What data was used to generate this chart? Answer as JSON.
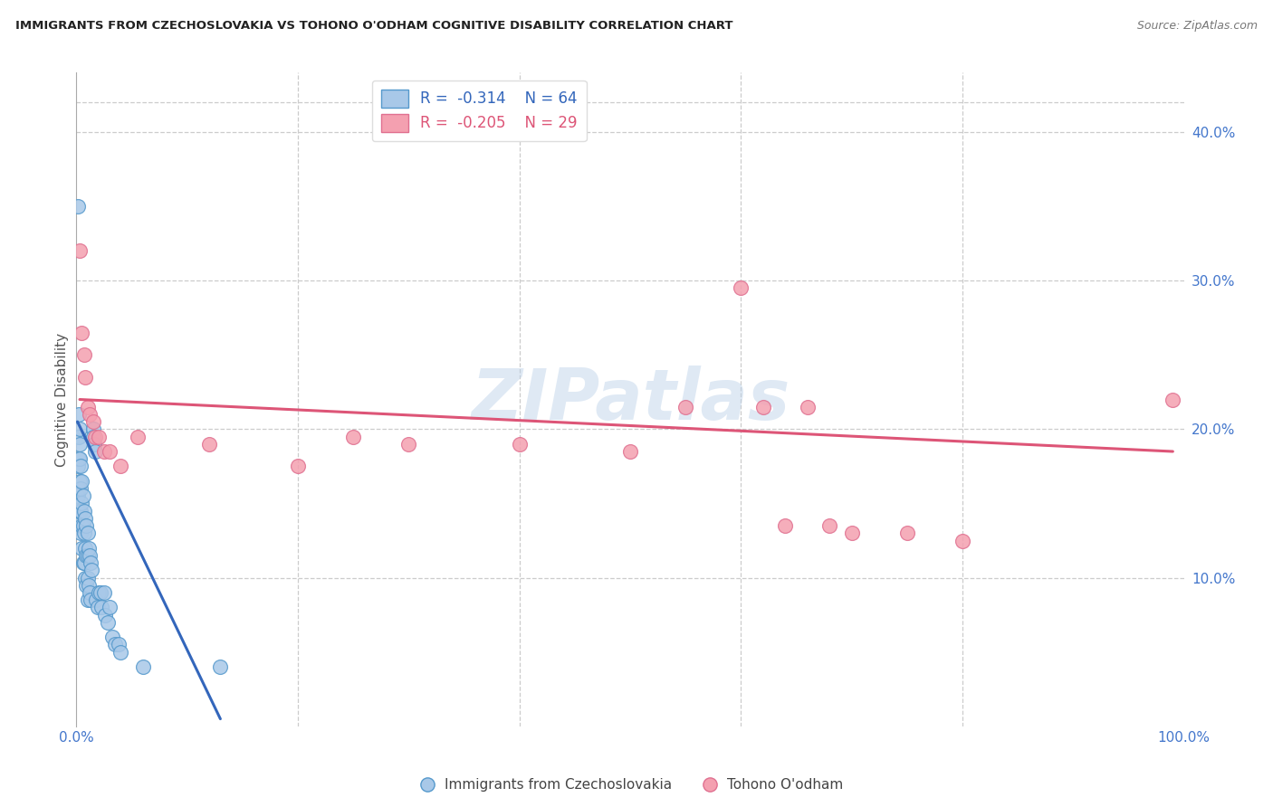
{
  "title": "IMMIGRANTS FROM CZECHOSLOVAKIA VS TOHONO O'ODHAM COGNITIVE DISABILITY CORRELATION CHART",
  "source": "Source: ZipAtlas.com",
  "ylabel": "Cognitive Disability",
  "ytick_labels": [
    "10.0%",
    "20.0%",
    "30.0%",
    "40.0%"
  ],
  "ytick_values": [
    0.1,
    0.2,
    0.3,
    0.4
  ],
  "xlim": [
    0.0,
    1.0
  ],
  "ylim": [
    0.0,
    0.44
  ],
  "blue_R": "-0.314",
  "blue_N": "64",
  "pink_R": "-0.205",
  "pink_N": "29",
  "blue_color": "#a8c8e8",
  "pink_color": "#f4a0b0",
  "blue_edge_color": "#5599cc",
  "pink_edge_color": "#e07090",
  "blue_line_color": "#3366bb",
  "pink_line_color": "#dd5577",
  "watermark": "ZIPatlas",
  "legend_label_blue": "Immigrants from Czechoslovakia",
  "legend_label_pink": "Tohono O'odham",
  "blue_points_x": [
    0.001,
    0.001,
    0.001,
    0.001,
    0.002,
    0.002,
    0.002,
    0.002,
    0.002,
    0.003,
    0.003,
    0.003,
    0.003,
    0.003,
    0.004,
    0.004,
    0.004,
    0.004,
    0.005,
    0.005,
    0.005,
    0.005,
    0.006,
    0.006,
    0.006,
    0.007,
    0.007,
    0.007,
    0.008,
    0.008,
    0.008,
    0.009,
    0.009,
    0.009,
    0.01,
    0.01,
    0.01,
    0.01,
    0.011,
    0.011,
    0.012,
    0.012,
    0.013,
    0.013,
    0.014,
    0.015,
    0.015,
    0.016,
    0.017,
    0.018,
    0.019,
    0.02,
    0.022,
    0.023,
    0.025,
    0.026,
    0.028,
    0.03,
    0.032,
    0.035,
    0.038,
    0.04,
    0.06,
    0.13
  ],
  "blue_points_y": [
    0.35,
    0.175,
    0.155,
    0.14,
    0.21,
    0.195,
    0.18,
    0.16,
    0.145,
    0.2,
    0.19,
    0.18,
    0.165,
    0.145,
    0.175,
    0.16,
    0.145,
    0.13,
    0.165,
    0.15,
    0.135,
    0.12,
    0.155,
    0.135,
    0.11,
    0.145,
    0.13,
    0.11,
    0.14,
    0.12,
    0.1,
    0.135,
    0.115,
    0.095,
    0.13,
    0.115,
    0.1,
    0.085,
    0.12,
    0.095,
    0.115,
    0.09,
    0.11,
    0.085,
    0.105,
    0.2,
    0.195,
    0.19,
    0.185,
    0.085,
    0.08,
    0.09,
    0.09,
    0.08,
    0.09,
    0.075,
    0.07,
    0.08,
    0.06,
    0.055,
    0.055,
    0.05,
    0.04,
    0.04
  ],
  "pink_points_x": [
    0.003,
    0.005,
    0.007,
    0.008,
    0.01,
    0.012,
    0.015,
    0.017,
    0.02,
    0.025,
    0.03,
    0.04,
    0.055,
    0.12,
    0.2,
    0.25,
    0.3,
    0.4,
    0.5,
    0.55,
    0.6,
    0.62,
    0.64,
    0.66,
    0.68,
    0.7,
    0.75,
    0.8,
    0.99
  ],
  "pink_points_y": [
    0.32,
    0.265,
    0.25,
    0.235,
    0.215,
    0.21,
    0.205,
    0.195,
    0.195,
    0.185,
    0.185,
    0.175,
    0.195,
    0.19,
    0.175,
    0.195,
    0.19,
    0.19,
    0.185,
    0.215,
    0.295,
    0.215,
    0.135,
    0.215,
    0.135,
    0.13,
    0.13,
    0.125,
    0.22
  ],
  "blue_line_x": [
    0.001,
    0.13
  ],
  "blue_line_y": [
    0.205,
    0.005
  ],
  "pink_line_x": [
    0.003,
    0.99
  ],
  "pink_line_y": [
    0.22,
    0.185
  ]
}
